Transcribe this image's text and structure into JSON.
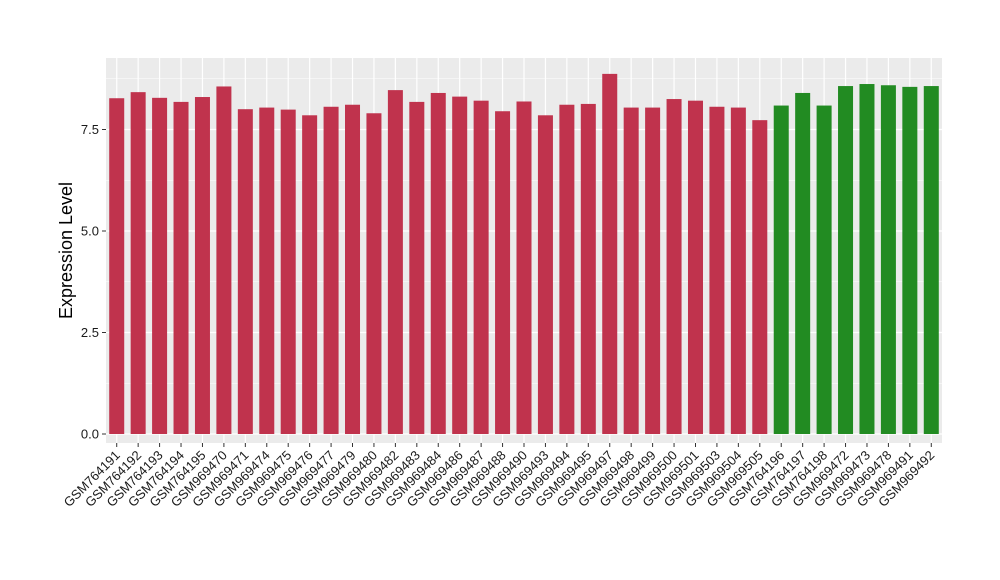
{
  "chart_data": {
    "type": "bar",
    "title": "",
    "xlabel": "",
    "ylabel": "Expression Level",
    "ylim": [
      0,
      9.0
    ],
    "yticks": [
      "0.0",
      "2.5",
      "5.0",
      "7.5"
    ],
    "grid": true,
    "legend": "none",
    "colors": {
      "group1": "#c0334d",
      "group2": "#228b22",
      "panel": "#ebebeb",
      "grid": "#ffffff"
    },
    "categories": [
      "GSM764191",
      "GSM764192",
      "GSM764193",
      "GSM764194",
      "GSM764195",
      "GSM969470",
      "GSM969471",
      "GSM969474",
      "GSM969475",
      "GSM969476",
      "GSM969477",
      "GSM969479",
      "GSM969480",
      "GSM969482",
      "GSM969483",
      "GSM969484",
      "GSM969486",
      "GSM969487",
      "GSM969488",
      "GSM969490",
      "GSM969493",
      "GSM969494",
      "GSM969495",
      "GSM969497",
      "GSM969498",
      "GSM969499",
      "GSM969500",
      "GSM969501",
      "GSM969503",
      "GSM969504",
      "GSM969505",
      "GSM764196",
      "GSM764197",
      "GSM764198",
      "GSM969472",
      "GSM969473",
      "GSM969478",
      "GSM969491",
      "GSM969492"
    ],
    "values": [
      8.27,
      8.42,
      8.28,
      8.18,
      8.3,
      8.56,
      8.0,
      8.04,
      7.99,
      7.85,
      8.06,
      8.11,
      7.9,
      8.47,
      8.18,
      8.4,
      8.31,
      8.21,
      7.95,
      8.19,
      7.85,
      8.11,
      8.13,
      8.87,
      8.04,
      8.04,
      8.25,
      8.21,
      8.06,
      8.04,
      7.73,
      8.09,
      8.4,
      8.09,
      8.57,
      8.62,
      8.59,
      8.55,
      8.57
    ],
    "groups": [
      1,
      1,
      1,
      1,
      1,
      1,
      1,
      1,
      1,
      1,
      1,
      1,
      1,
      1,
      1,
      1,
      1,
      1,
      1,
      1,
      1,
      1,
      1,
      1,
      1,
      1,
      1,
      1,
      1,
      1,
      1,
      2,
      2,
      2,
      2,
      2,
      2,
      2,
      2
    ]
  }
}
